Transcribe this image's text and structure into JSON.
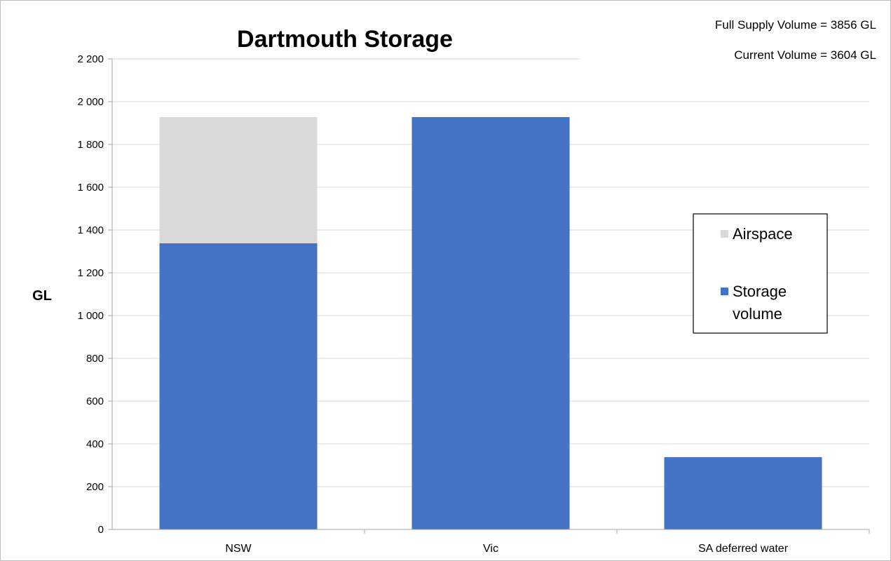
{
  "chart_data": {
    "type": "bar",
    "stacked": true,
    "title": "Dartmouth Storage",
    "xlabel": "",
    "ylabel": "GL",
    "ylim": [
      0,
      2200
    ],
    "yticks": [
      0,
      200,
      400,
      600,
      800,
      1000,
      1200,
      1400,
      1600,
      1800,
      2000,
      2200
    ],
    "ytick_labels": [
      "0",
      "200",
      "400",
      "600",
      "800",
      "1 000",
      "1 200",
      "1 400",
      "1 600",
      "1 800",
      "2 000",
      "2 200"
    ],
    "categories": [
      "NSW",
      "Vic",
      "SA deferred water"
    ],
    "series": [
      {
        "name": "Storage volume",
        "color": "#4472C4",
        "values": [
          1338,
          1928,
          338
        ]
      },
      {
        "name": "Airspace",
        "color": "#D9D9D9",
        "values": [
          590,
          0,
          0
        ]
      }
    ],
    "legend": {
      "position": "right",
      "entries": [
        {
          "lines": [
            "Airspace"
          ],
          "color": "#D9D9D9"
        },
        {
          "lines": [
            "Storage",
            "volume"
          ],
          "color": "#4472C4"
        }
      ]
    },
    "grid": true,
    "annotations": [
      "Full Supply Volume = 3856 GL",
      "Current Volume = 3604 GL"
    ]
  }
}
